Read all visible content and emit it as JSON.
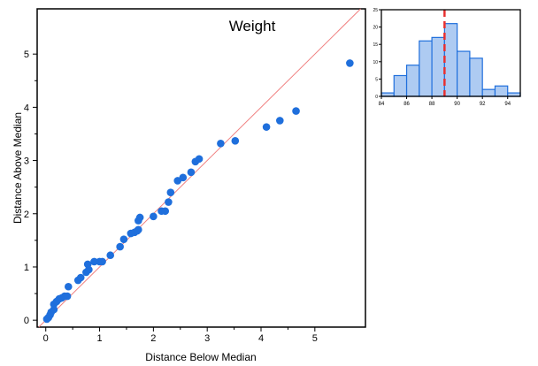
{
  "chart_data": [
    {
      "type": "scatter",
      "title": "Weight",
      "xlabel": "Distance Below Median",
      "ylabel": "Distance Above Median",
      "xlim": [
        -0.16,
        5.94
      ],
      "ylim": [
        -0.13,
        5.85
      ],
      "xticks": [
        0,
        1,
        2,
        3,
        4,
        5
      ],
      "yticks": [
        0,
        1,
        2,
        3,
        4,
        5
      ],
      "grid": false,
      "reference_line": "y = x",
      "colors": {
        "points": "#1f6fdc",
        "reference_line": "#f08080"
      },
      "points": [
        [
          0.02,
          0.02
        ],
        [
          0.05,
          0.05
        ],
        [
          0.08,
          0.1
        ],
        [
          0.1,
          0.15
        ],
        [
          0.15,
          0.2
        ],
        [
          0.15,
          0.3
        ],
        [
          0.2,
          0.35
        ],
        [
          0.25,
          0.4
        ],
        [
          0.3,
          0.42
        ],
        [
          0.35,
          0.45
        ],
        [
          0.4,
          0.45
        ],
        [
          0.42,
          0.63
        ],
        [
          0.6,
          0.75
        ],
        [
          0.65,
          0.8
        ],
        [
          0.75,
          0.9
        ],
        [
          0.8,
          0.95
        ],
        [
          0.78,
          1.05
        ],
        [
          0.9,
          1.1
        ],
        [
          1.0,
          1.1
        ],
        [
          1.05,
          1.1
        ],
        [
          1.2,
          1.22
        ],
        [
          1.38,
          1.38
        ],
        [
          1.45,
          1.52
        ],
        [
          1.58,
          1.63
        ],
        [
          1.65,
          1.65
        ],
        [
          1.7,
          1.68
        ],
        [
          1.72,
          1.7
        ],
        [
          1.72,
          1.87
        ],
        [
          1.75,
          1.93
        ],
        [
          2.0,
          1.95
        ],
        [
          2.15,
          2.05
        ],
        [
          2.22,
          2.05
        ],
        [
          2.28,
          2.22
        ],
        [
          2.32,
          2.4
        ],
        [
          2.45,
          2.62
        ],
        [
          2.55,
          2.68
        ],
        [
          2.7,
          2.78
        ],
        [
          2.78,
          2.98
        ],
        [
          2.85,
          3.03
        ],
        [
          3.25,
          3.32
        ],
        [
          3.52,
          3.37
        ],
        [
          4.1,
          3.63
        ],
        [
          4.35,
          3.75
        ],
        [
          4.65,
          3.93
        ],
        [
          5.65,
          4.83
        ]
      ]
    },
    {
      "type": "bar",
      "subtype": "histogram",
      "bin_edges": [
        84,
        85,
        86,
        87,
        88,
        89,
        90,
        91,
        92,
        93,
        94,
        95
      ],
      "values": [
        1,
        6,
        9,
        16,
        17,
        21,
        13,
        11,
        2,
        3,
        1
      ],
      "xlim": [
        84,
        95
      ],
      "ylim": [
        0,
        25
      ],
      "xticks": [
        84,
        86,
        88,
        90,
        92,
        94
      ],
      "yticks": [
        0,
        5,
        10,
        15,
        20,
        25
      ],
      "median_line": 89,
      "colors": {
        "bar_fill": "#aecbf2",
        "bar_edge": "#1f6fdc",
        "median_line": "#e83030"
      }
    }
  ]
}
